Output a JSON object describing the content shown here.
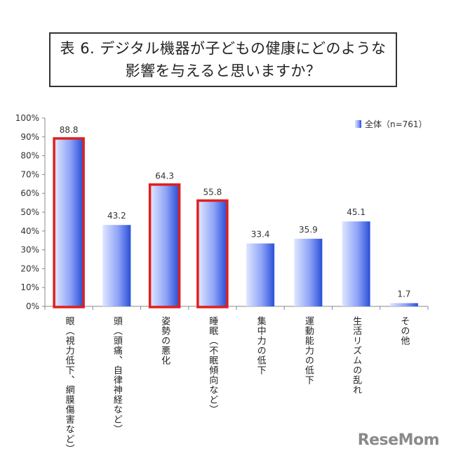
{
  "title": {
    "line1": "表 6. デジタル機器が子どもの健康にどのような",
    "line2": "影響を与えると思いますか？"
  },
  "logo_text": "ReseMom",
  "chart_data": {
    "type": "bar",
    "categories": [
      "眼（視力低下、網膜傷害など）",
      "頭（頭痛、自律神経など）",
      "姿勢の悪化",
      "睡眠（不眠傾向など）",
      "集中力の低下",
      "運動能力の低下",
      "生活リズムの乱れ",
      "その他"
    ],
    "series": [
      {
        "name": "全体（n=761）",
        "values": [
          88.8,
          43.2,
          64.3,
          55.8,
          33.4,
          35.9,
          45.1,
          1.7
        ]
      }
    ],
    "data_labels": [
      "88.8",
      "43.2",
      "64.3",
      "55.8",
      "33.4",
      "35.9",
      "45.1",
      "1.7"
    ],
    "highlighted": [
      true,
      false,
      true,
      true,
      false,
      false,
      false,
      false
    ],
    "y_ticks": [
      "0%",
      "10%",
      "20%",
      "30%",
      "40%",
      "50%",
      "60%",
      "70%",
      "80%",
      "90%",
      "100%"
    ],
    "ylim": [
      0,
      100
    ],
    "grid": false,
    "legend_position": "top-right",
    "colors": {
      "bar_light": "#dfe6ff",
      "bar_dark": "#2a4fd8",
      "highlight_border": "#e0201c",
      "axis": "#888888"
    }
  }
}
